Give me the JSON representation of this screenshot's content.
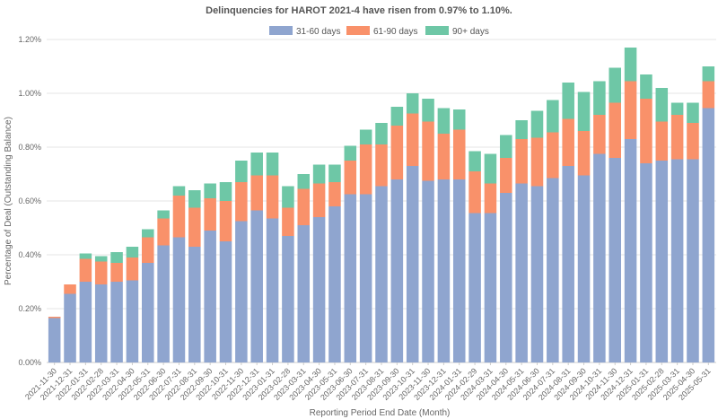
{
  "chart_data": {
    "type": "bar",
    "stacked": true,
    "title": "Delinquencies for HAROT 2021-4 have risen from 0.97% to 1.10%.",
    "xlabel": "Reporting Period End Date (Month)",
    "ylabel": "Percentage of Deal (Outstanding Balance)",
    "ylim": [
      0,
      1.2
    ],
    "yticks": [
      "0.00%",
      "0.20%",
      "0.40%",
      "0.60%",
      "0.80%",
      "1.00%",
      "1.20%"
    ],
    "ytick_values": [
      0,
      0.2,
      0.4,
      0.6,
      0.8,
      1.0,
      1.2
    ],
    "grid": true,
    "legend_position": "top-center",
    "categories": [
      "2021-11-30",
      "2021-12-31",
      "2022-01-31",
      "2022-02-28",
      "2022-03-31",
      "2022-04-30",
      "2022-05-31",
      "2022-06-30",
      "2022-07-31",
      "2022-08-31",
      "2022-09-30",
      "2022-10-31",
      "2022-11-30",
      "2022-12-31",
      "2023-01-31",
      "2023-02-28",
      "2023-03-31",
      "2023-04-30",
      "2023-05-31",
      "2023-06-30",
      "2023-07-31",
      "2023-08-31",
      "2023-09-30",
      "2023-10-31",
      "2023-11-30",
      "2023-12-31",
      "2024-01-31",
      "2024-02-29",
      "2024-03-31",
      "2024-04-30",
      "2024-05-31",
      "2024-06-30",
      "2024-07-31",
      "2024-08-31",
      "2024-09-30",
      "2024-10-31",
      "2024-11-30",
      "2024-12-31",
      "2025-01-31",
      "2025-02-28",
      "2025-03-31",
      "2025-04-30",
      "2025-05-31"
    ],
    "series": [
      {
        "name": "31-60 days",
        "color": "#8fa5cf",
        "values": [
          0.165,
          0.255,
          0.3,
          0.29,
          0.3,
          0.305,
          0.37,
          0.435,
          0.465,
          0.43,
          0.49,
          0.45,
          0.525,
          0.565,
          0.535,
          0.47,
          0.51,
          0.54,
          0.58,
          0.625,
          0.625,
          0.655,
          0.68,
          0.73,
          0.675,
          0.68,
          0.68,
          0.555,
          0.555,
          0.63,
          0.665,
          0.655,
          0.685,
          0.73,
          0.695,
          0.775,
          0.76,
          0.83,
          0.74,
          0.75,
          0.755,
          0.755,
          0.945
        ]
      },
      {
        "name": "61-90 days",
        "color": "#f9916a",
        "values": [
          0.005,
          0.035,
          0.085,
          0.085,
          0.07,
          0.085,
          0.095,
          0.1,
          0.155,
          0.145,
          0.12,
          0.15,
          0.145,
          0.13,
          0.16,
          0.105,
          0.135,
          0.125,
          0.09,
          0.125,
          0.185,
          0.155,
          0.2,
          0.195,
          0.22,
          0.17,
          0.185,
          0.155,
          0.11,
          0.13,
          0.165,
          0.18,
          0.17,
          0.175,
          0.165,
          0.145,
          0.205,
          0.215,
          0.24,
          0.145,
          0.165,
          0.135,
          0.1
        ]
      },
      {
        "name": "90+ days",
        "color": "#6ec7a6",
        "values": [
          0.0,
          0.0,
          0.02,
          0.02,
          0.04,
          0.04,
          0.03,
          0.03,
          0.035,
          0.065,
          0.055,
          0.07,
          0.08,
          0.085,
          0.085,
          0.08,
          0.055,
          0.07,
          0.065,
          0.055,
          0.055,
          0.08,
          0.07,
          0.075,
          0.085,
          0.095,
          0.075,
          0.075,
          0.11,
          0.085,
          0.07,
          0.1,
          0.12,
          0.135,
          0.145,
          0.125,
          0.13,
          0.125,
          0.09,
          0.125,
          0.045,
          0.075,
          0.055
        ]
      }
    ]
  }
}
